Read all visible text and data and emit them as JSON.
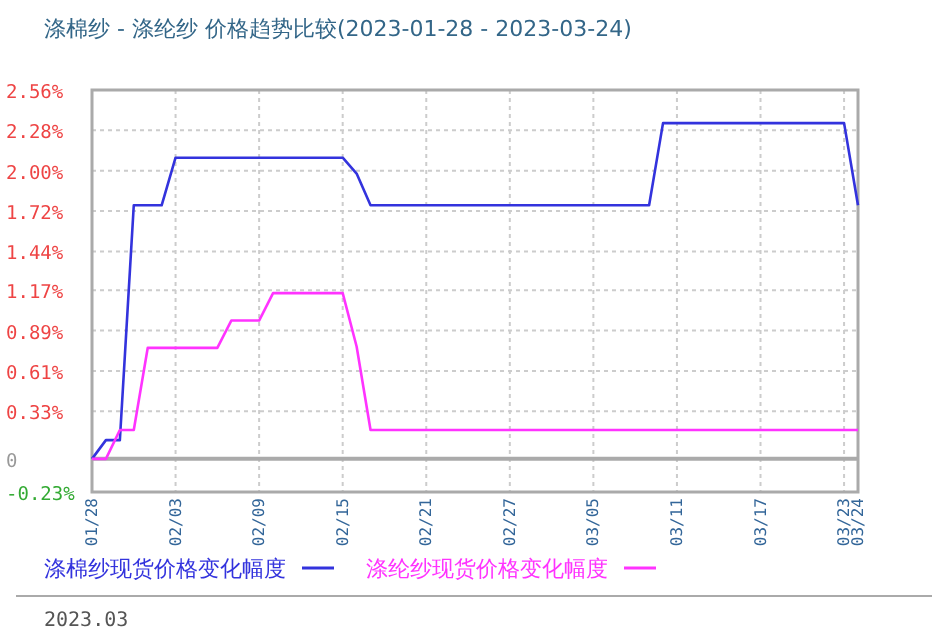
{
  "chart_data": {
    "type": "line",
    "title": "涤棉纱 - 涤纶纱 价格趋势比较(2023-01-28 - 2023-03-24)",
    "xlim": [
      "2023-01-28",
      "2023-03-24"
    ],
    "xticks": [
      {
        "value": "2023-01-28",
        "label": "01/28"
      },
      {
        "value": "2023-02-03",
        "label": "02/03"
      },
      {
        "value": "2023-02-09",
        "label": "02/09"
      },
      {
        "value": "2023-02-15",
        "label": "02/15"
      },
      {
        "value": "2023-02-21",
        "label": "02/21"
      },
      {
        "value": "2023-02-27",
        "label": "02/27"
      },
      {
        "value": "2023-03-05",
        "label": "03/05"
      },
      {
        "value": "2023-03-11",
        "label": "03/11"
      },
      {
        "value": "2023-03-17",
        "label": "03/17"
      },
      {
        "value": "2023-03-23",
        "label": "03/23"
      },
      {
        "value": "2023-03-24",
        "label": "03/24"
      }
    ],
    "ylim": [
      -0.23,
      2.56
    ],
    "yticks": [
      {
        "value": -0.23,
        "label": "-0.23%"
      },
      {
        "value": 0,
        "label": "0"
      },
      {
        "value": 0.33,
        "label": "0.33%"
      },
      {
        "value": 0.61,
        "label": "0.61%"
      },
      {
        "value": 0.89,
        "label": "0.89%"
      },
      {
        "value": 1.17,
        "label": "1.17%"
      },
      {
        "value": 1.44,
        "label": "1.44%"
      },
      {
        "value": 1.72,
        "label": "1.72%"
      },
      {
        "value": 2.0,
        "label": "2.00%"
      },
      {
        "value": 2.28,
        "label": "2.28%"
      },
      {
        "value": 2.56,
        "label": "2.56%"
      }
    ],
    "grid": true,
    "legend": "bottom",
    "marker": "none",
    "line_style": "solid",
    "ref_lines": [
      {
        "axis": "y",
        "value": 0,
        "color": "#aaaaaa"
      }
    ],
    "series": [
      {
        "name": "涤棉纱现货价格变化幅度",
        "color": "#3333dd",
        "x": [
          "2023-01-28",
          "2023-01-29",
          "2023-01-30",
          "2023-01-31",
          "2023-02-02",
          "2023-02-03",
          "2023-02-15",
          "2023-02-16",
          "2023-02-17",
          "2023-03-09",
          "2023-03-10",
          "2023-03-23",
          "2023-03-24"
        ],
        "values": [
          0,
          0.13,
          0.13,
          1.76,
          1.76,
          2.09,
          2.09,
          1.98,
          1.76,
          1.76,
          2.33,
          2.33,
          1.76
        ]
      },
      {
        "name": "涤纶纱现货价格变化幅度",
        "color": "#ff33ff",
        "x": [
          "2023-01-28",
          "2023-01-29",
          "2023-01-30",
          "2023-01-31",
          "2023-02-01",
          "2023-02-06",
          "2023-02-07",
          "2023-02-09",
          "2023-02-10",
          "2023-02-15",
          "2023-02-16",
          "2023-02-17",
          "2023-03-24"
        ],
        "values": [
          0,
          0,
          0.2,
          0.2,
          0.77,
          0.77,
          0.96,
          0.96,
          1.15,
          1.15,
          0.78,
          0.2,
          0.2
        ]
      }
    ],
    "annotations": [
      "2023.03"
    ]
  }
}
